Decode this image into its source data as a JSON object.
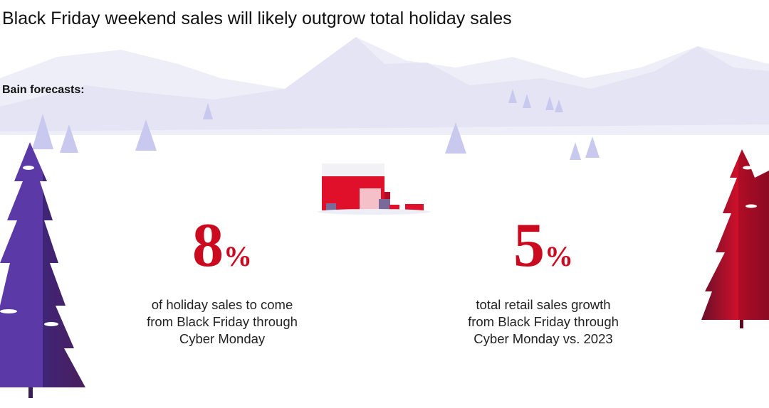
{
  "header": {
    "title": "Black Friday weekend sales will likely outgrow total holiday sales",
    "subtitle": "Bain forecasts:"
  },
  "stats": [
    {
      "number": 8,
      "unit": "%",
      "description_lines": [
        "of holiday sales to come",
        "from Black Friday through",
        "Cyber Monday"
      ]
    },
    {
      "number": 5,
      "unit": "%",
      "description_lines": [
        "total retail sales growth",
        "from Black Friday through",
        "Cyber Monday vs. 2023"
      ]
    }
  ]
}
